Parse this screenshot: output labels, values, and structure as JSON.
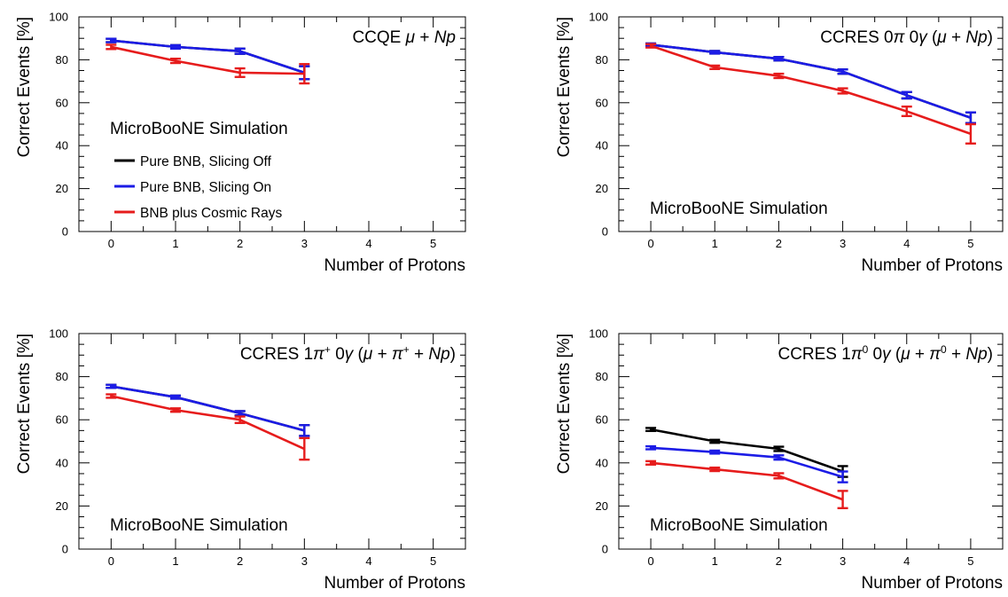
{
  "colors": {
    "pure_bnb_slicing_off": "#000000",
    "pure_bnb_slicing_on": "#1c1ce6",
    "bnb_plus_cosmic": "#e61c1c"
  },
  "legend": [
    {
      "label": "Pure BNB, Slicing Off",
      "color_key": "pure_bnb_slicing_off"
    },
    {
      "label": "Pure BNB, Slicing On",
      "color_key": "pure_bnb_slicing_on"
    },
    {
      "label": "BNB plus Cosmic Rays",
      "color_key": "bnb_plus_cosmic"
    }
  ],
  "simulation_label": "MicroBooNE Simulation",
  "chart_data": [
    {
      "type": "line",
      "title": "CCQE μ + Np",
      "title_parts": [
        {
          "t": "CCQE ",
          "s": "n"
        },
        {
          "t": "μ",
          "s": "i"
        },
        {
          "t": " + ",
          "s": "n"
        },
        {
          "t": "Np",
          "s": "i"
        }
      ],
      "xlabel": "Number of Protons",
      "ylabel": "Correct Events [%]",
      "xlim": [
        -0.5,
        5.5
      ],
      "ylim": [
        0,
        100
      ],
      "xticks": [
        0,
        1,
        2,
        3,
        4,
        5
      ],
      "yticks": [
        0,
        20,
        40,
        60,
        80,
        100
      ],
      "legend_shown": true,
      "series": [
        {
          "name": "Pure BNB, Slicing Off",
          "color_key": "pure_bnb_slicing_off",
          "x": [
            0,
            1,
            2,
            3
          ],
          "y": [
            89,
            86,
            84,
            74
          ],
          "err": [
            0.8,
            0.8,
            1.2,
            3
          ]
        },
        {
          "name": "Pure BNB, Slicing On",
          "color_key": "pure_bnb_slicing_on",
          "x": [
            0,
            1,
            2,
            3
          ],
          "y": [
            89,
            86,
            84,
            74
          ],
          "err": [
            0.8,
            0.8,
            1.2,
            3
          ]
        },
        {
          "name": "BNB plus Cosmic Rays",
          "color_key": "bnb_plus_cosmic",
          "x": [
            0,
            1,
            2,
            3
          ],
          "y": [
            86,
            79.5,
            74,
            73.5
          ],
          "err": [
            1,
            1,
            2,
            4.5
          ]
        }
      ]
    },
    {
      "type": "line",
      "title": "CCRES 0π 0γ (μ + Np)",
      "title_parts": [
        {
          "t": "CCRES 0",
          "s": "n"
        },
        {
          "t": "π",
          "s": "i"
        },
        {
          "t": " 0",
          "s": "n"
        },
        {
          "t": "γ",
          "s": "i"
        },
        {
          "t": " (",
          "s": "n"
        },
        {
          "t": "μ",
          "s": "i"
        },
        {
          "t": " + ",
          "s": "n"
        },
        {
          "t": "Np",
          "s": "i"
        },
        {
          "t": ")",
          "s": "n"
        }
      ],
      "xlabel": "Number of Protons",
      "ylabel": "Correct Events [%]",
      "xlim": [
        -0.5,
        5.5
      ],
      "ylim": [
        0,
        100
      ],
      "xticks": [
        0,
        1,
        2,
        3,
        4,
        5
      ],
      "yticks": [
        0,
        20,
        40,
        60,
        80,
        100
      ],
      "legend_shown": false,
      "series": [
        {
          "name": "Pure BNB, Slicing Off",
          "color_key": "pure_bnb_slicing_off",
          "x": [
            0,
            1,
            2,
            3,
            4,
            5
          ],
          "y": [
            87,
            83.5,
            80.5,
            74.5,
            63.5,
            53
          ],
          "err": [
            0.6,
            0.6,
            0.8,
            1,
            1.5,
            2.5
          ]
        },
        {
          "name": "Pure BNB, Slicing On",
          "color_key": "pure_bnb_slicing_on",
          "x": [
            0,
            1,
            2,
            3,
            4,
            5
          ],
          "y": [
            87,
            83.5,
            80.5,
            74.5,
            63.5,
            53
          ],
          "err": [
            0.6,
            0.6,
            0.8,
            1,
            1.5,
            2.5
          ]
        },
        {
          "name": "BNB plus Cosmic Rays",
          "color_key": "bnb_plus_cosmic",
          "x": [
            0,
            1,
            2,
            3,
            4,
            5
          ],
          "y": [
            86.5,
            76.5,
            72.5,
            65.5,
            56,
            45.5
          ],
          "err": [
            0.8,
            0.8,
            1,
            1.2,
            2.2,
            4.5
          ]
        }
      ]
    },
    {
      "type": "line",
      "title": "CCRES 1π+ 0γ (μ + π+ + Np)",
      "title_parts": [
        {
          "t": "CCRES 1",
          "s": "n"
        },
        {
          "t": "π",
          "s": "i"
        },
        {
          "t": "+",
          "s": "sup"
        },
        {
          "t": " 0",
          "s": "n"
        },
        {
          "t": "γ",
          "s": "i"
        },
        {
          "t": " (",
          "s": "n"
        },
        {
          "t": "μ",
          "s": "i"
        },
        {
          "t": " + ",
          "s": "n"
        },
        {
          "t": "π",
          "s": "i"
        },
        {
          "t": "+",
          "s": "sup"
        },
        {
          "t": " + ",
          "s": "n"
        },
        {
          "t": "Np",
          "s": "i"
        },
        {
          "t": ")",
          "s": "n"
        }
      ],
      "xlabel": "Number of Protons",
      "ylabel": "Correct Events [%]",
      "xlim": [
        -0.5,
        5.5
      ],
      "ylim": [
        0,
        100
      ],
      "xticks": [
        0,
        1,
        2,
        3,
        4,
        5
      ],
      "yticks": [
        0,
        20,
        40,
        60,
        80,
        100
      ],
      "legend_shown": false,
      "series": [
        {
          "name": "Pure BNB, Slicing Off",
          "color_key": "pure_bnb_slicing_off",
          "x": [
            0,
            1,
            2,
            3
          ],
          "y": [
            75.5,
            70.5,
            63,
            55
          ],
          "err": [
            0.7,
            0.7,
            1,
            2.5
          ]
        },
        {
          "name": "Pure BNB, Slicing On",
          "color_key": "pure_bnb_slicing_on",
          "x": [
            0,
            1,
            2,
            3
          ],
          "y": [
            75.5,
            70.5,
            63,
            55
          ],
          "err": [
            0.7,
            0.7,
            1,
            2.5
          ]
        },
        {
          "name": "BNB plus Cosmic Rays",
          "color_key": "bnb_plus_cosmic",
          "x": [
            0,
            1,
            2,
            3
          ],
          "y": [
            71,
            64.5,
            60,
            46.5
          ],
          "err": [
            0.8,
            0.8,
            1.5,
            5
          ]
        }
      ]
    },
    {
      "type": "line",
      "title": "CCRES 1π0 0γ (μ + π0 + Np)",
      "title_parts": [
        {
          "t": "CCRES 1",
          "s": "n"
        },
        {
          "t": "π",
          "s": "i"
        },
        {
          "t": "0",
          "s": "sup"
        },
        {
          "t": " 0",
          "s": "n"
        },
        {
          "t": "γ",
          "s": "i"
        },
        {
          "t": " (",
          "s": "n"
        },
        {
          "t": "μ",
          "s": "i"
        },
        {
          "t": " + ",
          "s": "n"
        },
        {
          "t": "π",
          "s": "i"
        },
        {
          "t": "0",
          "s": "sup"
        },
        {
          "t": " + ",
          "s": "n"
        },
        {
          "t": "Np",
          "s": "i"
        },
        {
          "t": ")",
          "s": "n"
        }
      ],
      "xlabel": "Number of Protons",
      "ylabel": "Correct Events [%]",
      "xlim": [
        -0.5,
        5.5
      ],
      "ylim": [
        0,
        100
      ],
      "xticks": [
        0,
        1,
        2,
        3,
        4,
        5
      ],
      "yticks": [
        0,
        20,
        40,
        60,
        80,
        100
      ],
      "legend_shown": false,
      "series": [
        {
          "name": "Pure BNB, Slicing Off",
          "color_key": "pure_bnb_slicing_off",
          "x": [
            0,
            1,
            2,
            3
          ],
          "y": [
            55.5,
            50,
            46.5,
            36
          ],
          "err": [
            0.7,
            0.7,
            1,
            2.5
          ]
        },
        {
          "name": "Pure BNB, Slicing On",
          "color_key": "pure_bnb_slicing_on",
          "x": [
            0,
            1,
            2,
            3
          ],
          "y": [
            47,
            45,
            42.5,
            33.5
          ],
          "err": [
            0.7,
            0.7,
            1,
            2.5
          ]
        },
        {
          "name": "BNB plus Cosmic Rays",
          "color_key": "bnb_plus_cosmic",
          "x": [
            0,
            1,
            2,
            3
          ],
          "y": [
            40,
            37,
            34,
            23
          ],
          "err": [
            0.8,
            0.8,
            1.2,
            4
          ]
        }
      ]
    }
  ]
}
